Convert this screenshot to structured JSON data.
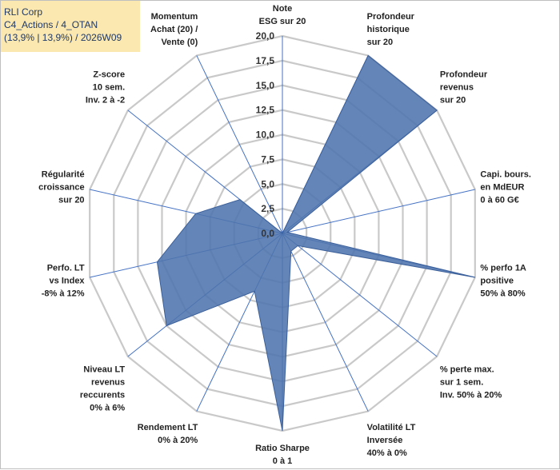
{
  "header": {
    "line1": "RLI Corp",
    "line2": "C4_Actions / 4_OTAN",
    "line3": "(13,9% | 13,9%) / 2026W09"
  },
  "chart_data": {
    "type": "radar",
    "title": "RLI Corp",
    "rmin": 0,
    "rmax": 20,
    "ticks": [
      "0,0",
      "2,5",
      "5,0",
      "7,5",
      "10,0",
      "12,5",
      "15,0",
      "17,5",
      "20,0"
    ],
    "axes": [
      {
        "label": [
          "Note",
          "ESG sur 20"
        ],
        "value": 0
      },
      {
        "label": [
          "Profondeur",
          "historique",
          "sur 20"
        ],
        "value": 20
      },
      {
        "label": [
          "Profondeur",
          "revenus",
          "sur 20"
        ],
        "value": 20
      },
      {
        "label": [
          "Capi. bours.",
          "en MdEUR",
          "0 à 60 G€"
        ],
        "value": 0.5
      },
      {
        "label": [
          "% perfo 1A",
          "positive",
          "50% à 80%"
        ],
        "value": 20
      },
      {
        "label": [
          "% perte max.",
          "sur 1 sem.",
          "Inv. 50% à 20%"
        ],
        "value": 2
      },
      {
        "label": [
          "Volatilité LT",
          "Inversée",
          "40% à 0%"
        ],
        "value": 2
      },
      {
        "label": [
          "Ratio Sharpe",
          "0 à 1"
        ],
        "value": 20
      },
      {
        "label": [
          "Rendement LT",
          "0% à 20%"
        ],
        "value": 6.5
      },
      {
        "label": [
          "Niveau LT",
          "revenus",
          "reccurents",
          "0% à 6%"
        ],
        "value": 15
      },
      {
        "label": [
          "Perfo. LT",
          "vs Index",
          "-8% à 12%"
        ],
        "value": 13
      },
      {
        "label": [
          "Régularité",
          "croissance",
          "sur 20"
        ],
        "value": 9
      },
      {
        "label": [
          "Z-score",
          "10 sem.",
          "Inv. 2 à -2"
        ],
        "value": 5.5
      },
      {
        "label": [
          "Momentum",
          "Achat (20) /",
          "Vente (0)"
        ],
        "value": 0
      }
    ],
    "series": [
      {
        "name": "RLI Corp",
        "color": "#4f74ad"
      }
    ],
    "grid": true
  }
}
